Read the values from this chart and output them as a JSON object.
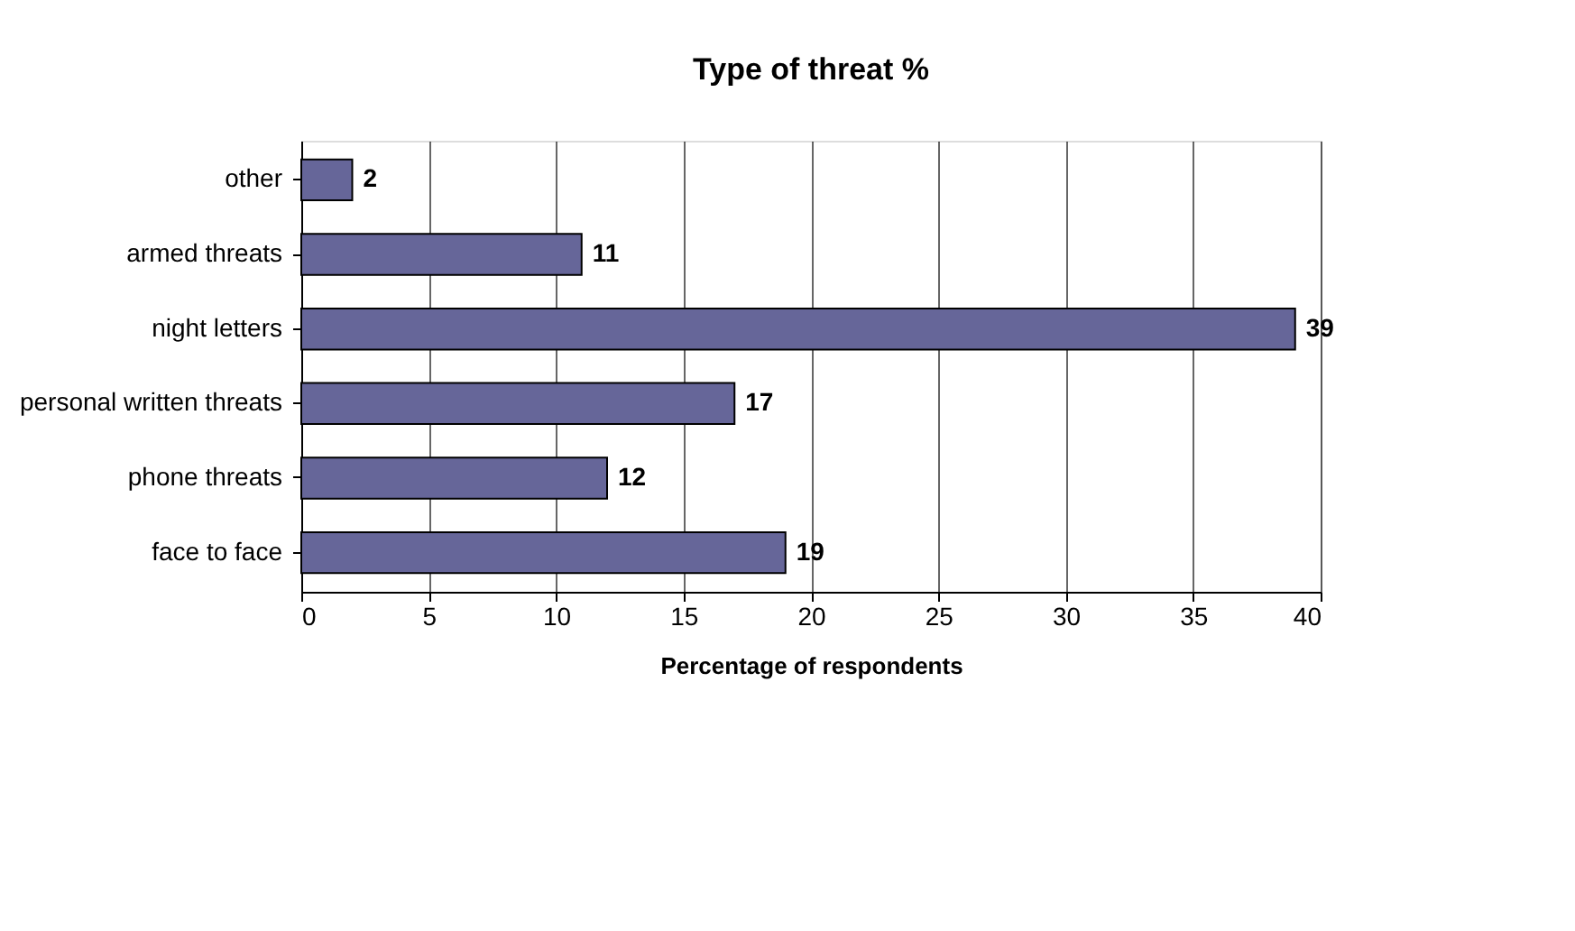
{
  "chart_data": {
    "type": "bar",
    "orientation": "horizontal",
    "title": "Type of threat %",
    "xlabel": "Percentage of respondents",
    "categories": [
      "other",
      "armed threats",
      "night letters",
      "personal written threats",
      "phone threats",
      "face to face"
    ],
    "values": [
      2,
      11,
      39,
      17,
      12,
      19
    ],
    "color": "#666699",
    "xlim": [
      0,
      40
    ],
    "xticks": [
      0,
      5,
      10,
      15,
      20,
      25,
      30,
      35,
      40
    ],
    "grid": "x",
    "data_labels": true
  }
}
